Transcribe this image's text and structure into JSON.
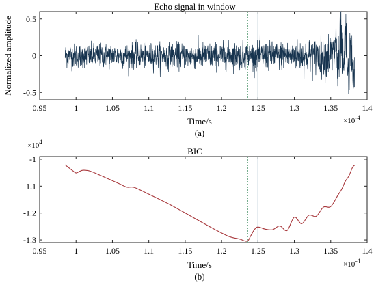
{
  "chart_data": [
    {
      "type": "line",
      "panel_label": "(a)",
      "title": "Echo signal in window",
      "xlabel": "Time/s",
      "ylabel": "Normalized amplitude",
      "x_multiplier_label": "×10",
      "x_multiplier_exponent": "-4",
      "xlim": [
        0.95,
        1.4
      ],
      "ylim": [
        -0.6,
        0.6
      ],
      "x_ticks": [
        0.95,
        1,
        1.05,
        1.1,
        1.15,
        1.2,
        1.25,
        1.3,
        1.35,
        1.4
      ],
      "x_tick_labels": [
        "0.95",
        "1",
        "1.05",
        "1.1",
        "1.15",
        "1.2",
        "1.25",
        "1.3",
        "1.35",
        "1.4"
      ],
      "y_ticks": [
        -0.5,
        0,
        0.5
      ],
      "y_tick_labels": [
        "-0.5",
        "0",
        "0.5"
      ],
      "vlines": [
        1.236,
        1.25
      ],
      "line_color": "#17344f",
      "vline_colors": [
        "#6fa987",
        "#6a8fa0"
      ],
      "signal": {
        "x_start": 0.985,
        "x_end": 1.383,
        "envelope_x": [
          0.985,
          1.05,
          1.15,
          1.23,
          1.28,
          1.32,
          1.34,
          1.355,
          1.362,
          1.37,
          1.383
        ],
        "envelope_amp": [
          0.18,
          0.18,
          0.19,
          0.2,
          0.21,
          0.25,
          0.3,
          0.42,
          0.5,
          0.42,
          0.3
        ]
      }
    },
    {
      "type": "line",
      "panel_label": "(b)",
      "title": "BIC",
      "xlabel": "Time/s",
      "y_multiplier_label": "×10",
      "y_multiplier_exponent": "4",
      "x_multiplier_label": "×10",
      "x_multiplier_exponent": "-4",
      "xlim": [
        0.95,
        1.4
      ],
      "ylim": [
        -1.31,
        -0.99
      ],
      "x_ticks": [
        0.95,
        1,
        1.05,
        1.1,
        1.15,
        1.2,
        1.25,
        1.3,
        1.35,
        1.4
      ],
      "x_tick_labels": [
        "0.95",
        "1",
        "1.05",
        "1.1",
        "1.15",
        "1.2",
        "1.25",
        "1.3",
        "1.35",
        "1.4"
      ],
      "y_ticks": [
        -1.3,
        -1.2,
        -1.1,
        -1.0
      ],
      "y_tick_labels": [
        "-1.3",
        "-1.2",
        "-1.1",
        "-1"
      ],
      "vlines": [
        1.236,
        1.25
      ],
      "line_color": "#a8383c",
      "vline_colors": [
        "#6fa987",
        "#6a8fa0"
      ],
      "x": [
        0.985,
        0.995,
        1.0,
        1.005,
        1.01,
        1.02,
        1.04,
        1.06,
        1.07,
        1.08,
        1.1,
        1.13,
        1.16,
        1.19,
        1.21,
        1.225,
        1.235,
        1.24,
        1.245,
        1.25,
        1.26,
        1.27,
        1.28,
        1.29,
        1.3,
        1.31,
        1.32,
        1.33,
        1.34,
        1.35,
        1.36,
        1.365,
        1.37,
        1.375,
        1.38,
        1.383
      ],
      "y": [
        -1.021,
        -1.042,
        -1.051,
        -1.045,
        -1.041,
        -1.045,
        -1.068,
        -1.092,
        -1.104,
        -1.105,
        -1.13,
        -1.17,
        -1.215,
        -1.26,
        -1.287,
        -1.297,
        -1.305,
        -1.285,
        -1.262,
        -1.252,
        -1.26,
        -1.262,
        -1.248,
        -1.265,
        -1.215,
        -1.24,
        -1.208,
        -1.212,
        -1.178,
        -1.176,
        -1.133,
        -1.112,
        -1.082,
        -1.062,
        -1.03,
        -1.022
      ]
    }
  ]
}
